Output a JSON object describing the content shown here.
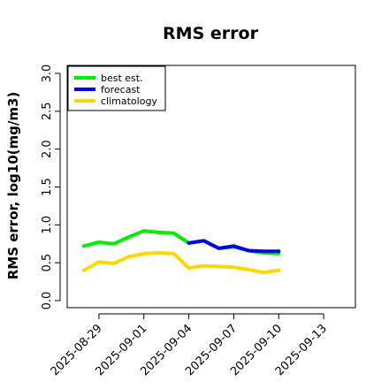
{
  "chart_data": {
    "type": "line",
    "title": "RMS error",
    "ylabel": "RMS error, log10(mg/m3)",
    "xlabel": "",
    "ylim": [
      0.0,
      3.0
    ],
    "yticks": [
      "0.0",
      "0.5",
      "1.0",
      "1.5",
      "2.0",
      "2.5",
      "3.0"
    ],
    "x_dates": [
      "2025-08-28",
      "2025-08-29",
      "2025-08-30",
      "2025-08-31",
      "2025-09-01",
      "2025-09-02",
      "2025-09-03",
      "2025-09-04",
      "2025-09-05",
      "2025-09-06",
      "2025-09-07",
      "2025-09-08",
      "2025-09-09",
      "2025-09-10"
    ],
    "xlim": [
      "2025-08-27",
      "2025-09-15"
    ],
    "xticks": [
      {
        "label": "2025-08-29",
        "date": "2025-08-29",
        "color": "#000000"
      },
      {
        "label": "2025-09-01",
        "date": "2025-09-01",
        "color": "#000000"
      },
      {
        "label": "2025-09-04",
        "date": "2025-09-04",
        "color": "#228b22"
      },
      {
        "label": "2025-09-07",
        "date": "2025-09-07",
        "color": "#000000"
      },
      {
        "label": "2025-09-10",
        "date": "2025-09-10",
        "color": "#000000"
      },
      {
        "label": "2025-09-13",
        "date": "2025-09-13",
        "color": "#000000"
      }
    ],
    "legend_position": "top-left",
    "series": [
      {
        "name": "best est.",
        "color": "#00ee00",
        "values": [
          0.72,
          0.77,
          0.75,
          0.84,
          0.92,
          0.9,
          0.89,
          0.76,
          0.79,
          0.69,
          0.71,
          0.66,
          0.63,
          0.62
        ]
      },
      {
        "name": "forecast",
        "color": "#0000ee",
        "values": [
          null,
          null,
          null,
          null,
          null,
          null,
          null,
          0.76,
          0.79,
          0.69,
          0.72,
          0.66,
          0.65,
          0.65
        ]
      },
      {
        "name": "climatology",
        "color": "#ffd700",
        "values": [
          0.4,
          0.51,
          0.49,
          0.58,
          0.62,
          0.63,
          0.62,
          0.43,
          0.46,
          0.45,
          0.44,
          0.41,
          0.37,
          0.4
        ]
      }
    ]
  }
}
